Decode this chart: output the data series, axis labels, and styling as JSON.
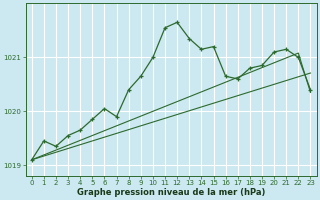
{
  "xlabel": "Graphe pression niveau de la mer (hPa)",
  "ylabel": "",
  "bg_color": "#cce8f0",
  "grid_color": "#ffffff",
  "line_color": "#2d6a2d",
  "x": [
    0,
    1,
    2,
    3,
    4,
    5,
    6,
    7,
    8,
    9,
    10,
    11,
    12,
    13,
    14,
    15,
    16,
    17,
    18,
    19,
    20,
    21,
    22,
    23
  ],
  "line1": [
    1019.1,
    1019.45,
    1019.35,
    1019.55,
    1019.65,
    1019.85,
    1020.05,
    1019.9,
    1020.4,
    1020.65,
    1021.0,
    1021.55,
    1021.65,
    1021.35,
    1021.15,
    1021.2,
    1020.65,
    1020.6,
    1020.8,
    1020.85,
    1021.1,
    1021.15,
    1021.0,
    1020.4
  ],
  "line2": [
    1019.1,
    1019.17,
    1019.24,
    1019.31,
    1019.38,
    1019.45,
    1019.52,
    1019.59,
    1019.66,
    1019.73,
    1019.8,
    1019.87,
    1019.94,
    1020.01,
    1020.08,
    1020.15,
    1020.22,
    1020.29,
    1020.36,
    1020.43,
    1020.5,
    1020.57,
    1020.64,
    1020.71
  ],
  "line3": [
    1019.1,
    1019.19,
    1019.28,
    1019.37,
    1019.46,
    1019.55,
    1019.64,
    1019.73,
    1019.82,
    1019.91,
    1020.0,
    1020.09,
    1020.18,
    1020.27,
    1020.36,
    1020.45,
    1020.54,
    1020.63,
    1020.72,
    1020.81,
    1020.9,
    1020.99,
    1021.08,
    1020.35
  ],
  "ylim": [
    1018.8,
    1022.0
  ],
  "yticks": [
    1019,
    1020,
    1021
  ],
  "xticks": [
    0,
    1,
    2,
    3,
    4,
    5,
    6,
    7,
    8,
    9,
    10,
    11,
    12,
    13,
    14,
    15,
    16,
    17,
    18,
    19,
    20,
    21,
    22,
    23
  ],
  "figwidth": 3.2,
  "figheight": 2.0,
  "dpi": 100
}
